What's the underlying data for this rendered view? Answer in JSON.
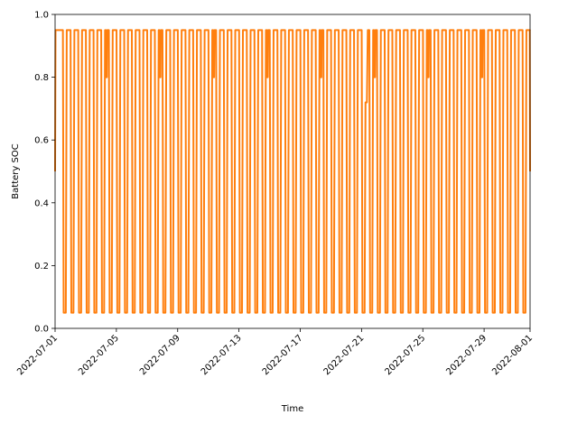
{
  "chart_data": {
    "type": "line",
    "title": "",
    "xlabel": "Time",
    "ylabel": "Battery SOC",
    "xlim": [
      "2022-07-01",
      "2022-08-01"
    ],
    "ylim": [
      0.0,
      1.0
    ],
    "yticks": [
      0.0,
      0.2,
      0.4,
      0.6,
      0.8,
      1.0
    ],
    "ytick_labels": [
      "0.0",
      "0.2",
      "0.4",
      "0.6",
      "0.8",
      "1.0"
    ],
    "xticks": [
      "2022-07-01",
      "2022-07-05",
      "2022-07-09",
      "2022-07-13",
      "2022-07-17",
      "2022-07-21",
      "2022-07-25",
      "2022-07-29",
      "2022-08-01"
    ],
    "grid": false,
    "legend": "none",
    "colors": {
      "series": "#ff7f0e"
    },
    "series": [
      {
        "soc_max": 0.95,
        "soc_min": 0.05,
        "soc_partial": 0.8,
        "soc_start": 0.5,
        "soc_end": 0.5,
        "cycles_per_day": 2,
        "dip_date": "2022-07-21",
        "dip_value": 0.72
      }
    ]
  }
}
